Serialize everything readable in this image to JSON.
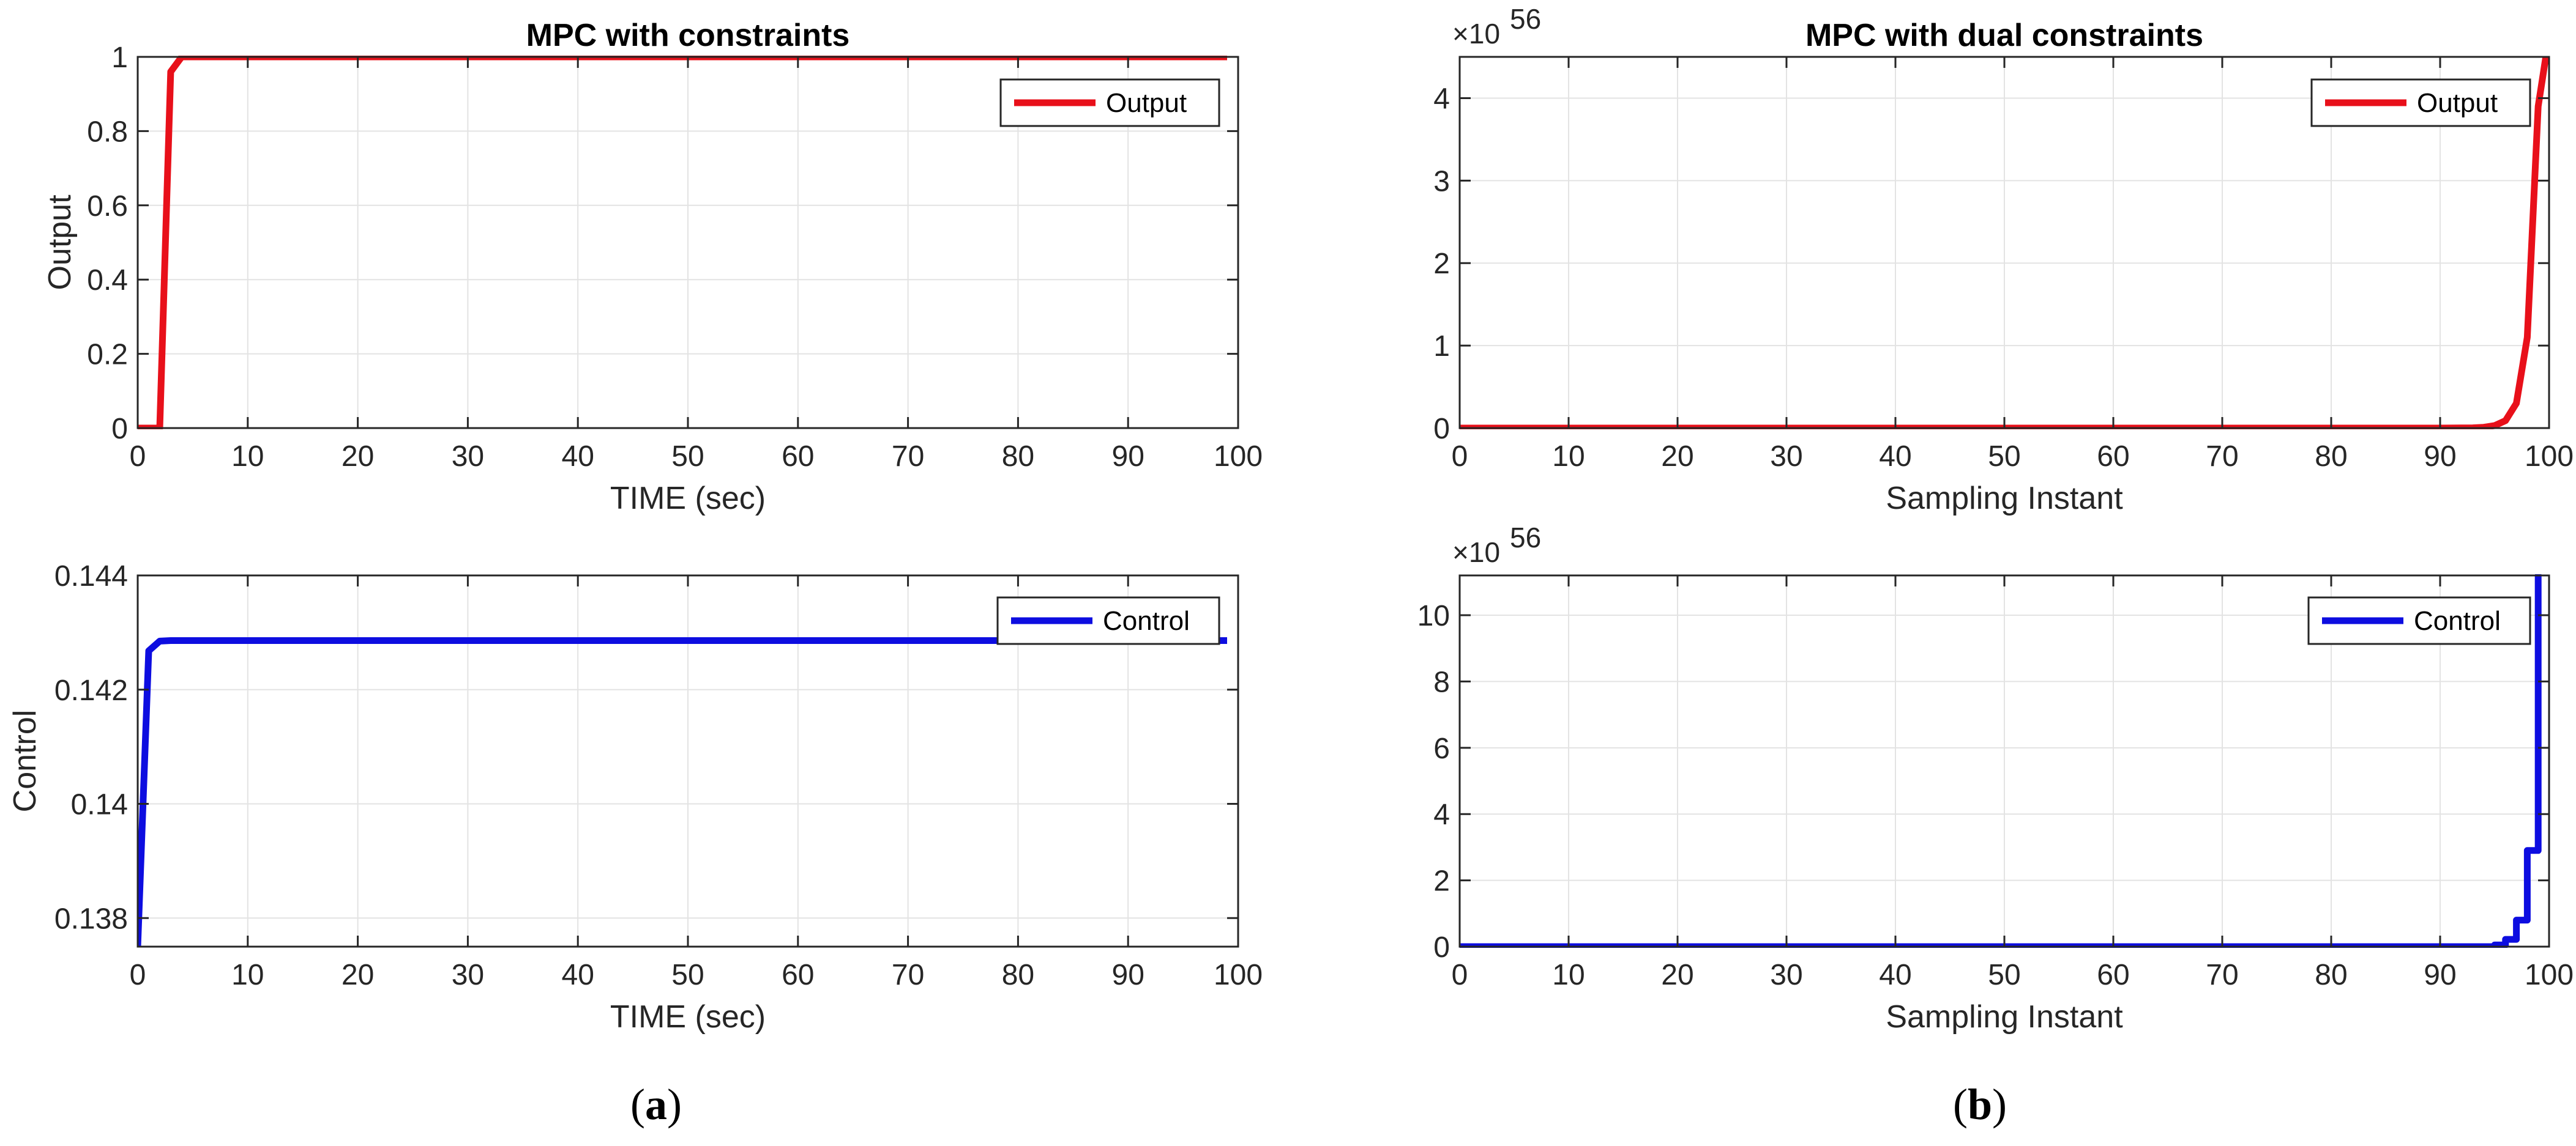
{
  "chart_data": [
    {
      "panel": "a-top",
      "type": "line",
      "title": "MPC with constraints",
      "xlabel": "TIME (sec)",
      "ylabel": "Output",
      "xlim": [
        0,
        100
      ],
      "ylim": [
        0,
        1
      ],
      "xticks": [
        0,
        10,
        20,
        30,
        40,
        50,
        60,
        70,
        80,
        90,
        100
      ],
      "xtick_labels": [
        "0",
        "10",
        "20",
        "30",
        "40",
        "50",
        "60",
        "70",
        "80",
        "90",
        "100"
      ],
      "yticks": [
        0,
        0.2,
        0.4,
        0.6,
        0.8,
        1
      ],
      "ytick_labels": [
        "0",
        "0.2",
        "0.4",
        "0.6",
        "0.8",
        "1"
      ],
      "exponent": "",
      "grid": true,
      "legend_position": "top-right",
      "series": [
        {
          "name": "Output",
          "color": "#e8101a",
          "x": [
            0,
            1,
            2,
            3,
            4,
            5,
            99
          ],
          "y": [
            0,
            0,
            0,
            0.96,
            1,
            1,
            1
          ]
        }
      ]
    },
    {
      "panel": "a-bottom",
      "type": "line",
      "title": "",
      "xlabel": "TIME (sec)",
      "ylabel": "Control",
      "xlim": [
        0,
        100
      ],
      "ylim": [
        0.1375,
        0.144
      ],
      "xticks": [
        0,
        10,
        20,
        30,
        40,
        50,
        60,
        70,
        80,
        90,
        100
      ],
      "xtick_labels": [
        "0",
        "10",
        "20",
        "30",
        "40",
        "50",
        "60",
        "70",
        "80",
        "90",
        "100"
      ],
      "yticks": [
        0.138,
        0.14,
        0.142,
        0.144
      ],
      "ytick_labels": [
        "0.138",
        "0.14",
        "0.142",
        "0.144"
      ],
      "exponent": "",
      "grid": true,
      "legend_position": "top-right",
      "series": [
        {
          "name": "Control",
          "color": "#0d0de0",
          "x": [
            0,
            1,
            2,
            3,
            99
          ],
          "y": [
            0.1375,
            0.14268,
            0.14285,
            0.14286,
            0.14286
          ]
        }
      ]
    },
    {
      "panel": "b-top",
      "type": "line",
      "title": "MPC with dual constraints",
      "xlabel": "Sampling Instant",
      "ylabel": "",
      "xlim": [
        0,
        100
      ],
      "ylim": [
        0,
        4.5
      ],
      "xticks": [
        0,
        10,
        20,
        30,
        40,
        50,
        60,
        70,
        80,
        90,
        100
      ],
      "xtick_labels": [
        "0",
        "10",
        "20",
        "30",
        "40",
        "50",
        "60",
        "70",
        "80",
        "90",
        "100"
      ],
      "yticks": [
        0,
        1,
        2,
        3,
        4
      ],
      "ytick_labels": [
        "0",
        "1",
        "2",
        "3",
        "4"
      ],
      "exponent": "56",
      "grid": true,
      "legend_position": "top-right",
      "series": [
        {
          "name": "Output",
          "color": "#e8101a",
          "x": [
            0,
            90,
            93,
            94,
            95,
            96,
            97,
            98,
            99,
            99.7
          ],
          "y": [
            0,
            0,
            0.003,
            0.01,
            0.03,
            0.09,
            0.3,
            1.1,
            3.9,
            4.5
          ]
        }
      ]
    },
    {
      "panel": "b-bottom",
      "type": "line",
      "title": "",
      "xlabel": "Sampling Instant",
      "ylabel": "",
      "xlim": [
        0,
        100
      ],
      "ylim": [
        0,
        11.2
      ],
      "xticks": [
        0,
        10,
        20,
        30,
        40,
        50,
        60,
        70,
        80,
        90,
        100
      ],
      "xtick_labels": [
        "0",
        "10",
        "20",
        "30",
        "40",
        "50",
        "60",
        "70",
        "80",
        "90",
        "100"
      ],
      "yticks": [
        0,
        2,
        4,
        6,
        8,
        10
      ],
      "ytick_labels": [
        "0",
        "2",
        "4",
        "6",
        "8",
        "10"
      ],
      "exponent": "56",
      "grid": true,
      "legend_position": "top-right",
      "series": [
        {
          "name": "Control",
          "color": "#0d0de0",
          "x": [
            0,
            94,
            95,
            95,
            96,
            96,
            97,
            97,
            98,
            98,
            99,
            99,
            99.3
          ],
          "y": [
            0,
            0,
            0,
            0.05,
            0.05,
            0.22,
            0.22,
            0.8,
            0.8,
            2.9,
            2.9,
            11.2,
            11.2
          ]
        }
      ]
    }
  ],
  "captions": {
    "a_open": "(",
    "a_letter": "a",
    "a_close": ")",
    "b_open": "(",
    "b_letter": "b",
    "b_close": ")"
  }
}
